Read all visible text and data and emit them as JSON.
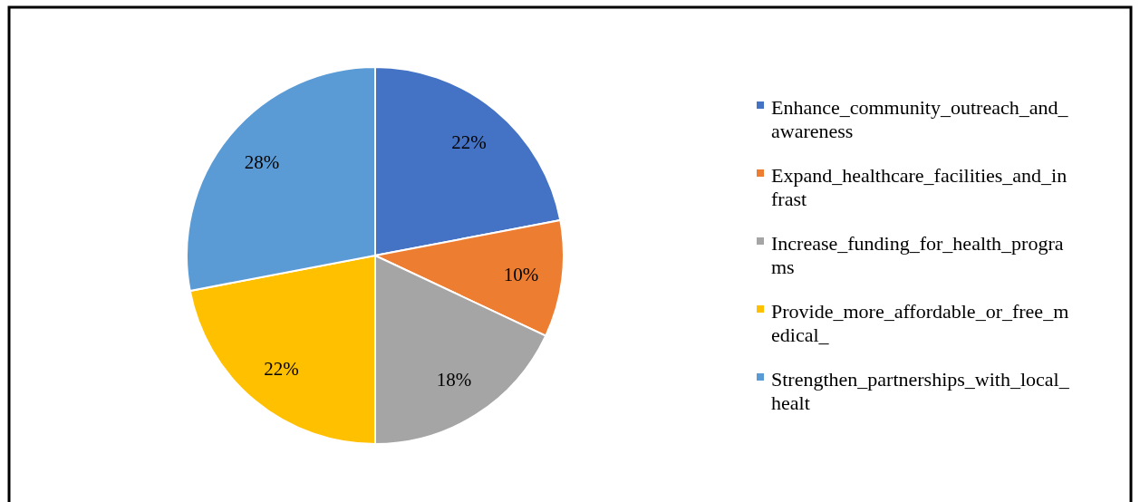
{
  "chart_data": {
    "type": "pie",
    "categories": [
      "Enhance_community_outreach_and_awareness",
      "Expand_healthcare_facilities_and_infrast",
      "Increase_funding_for_health_programs",
      "Provide_more_affordable_or_free_medical_",
      "Strengthen_partnerships_with_local_healt"
    ],
    "values": [
      22,
      10,
      18,
      22,
      28
    ],
    "colors": [
      "#4472c4",
      "#ed7d31",
      "#a5a5a5",
      "#ffc000",
      "#5b9bd5"
    ],
    "value_labels": [
      "22%",
      "10%",
      "18%",
      "22%",
      "28%"
    ],
    "legend": "right"
  }
}
